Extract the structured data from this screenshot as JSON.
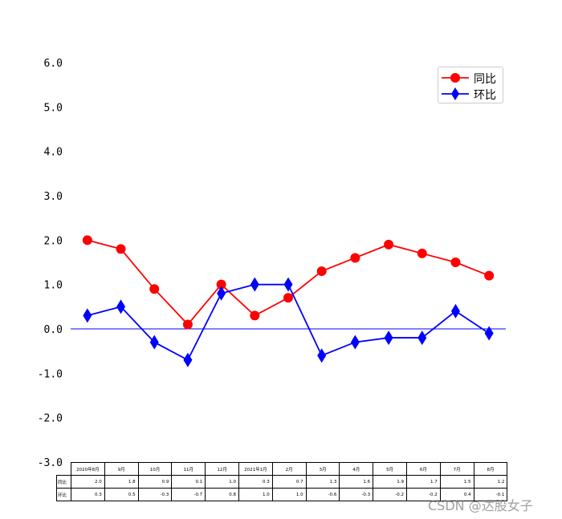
{
  "chart_data": {
    "type": "line",
    "categories": [
      "2020年8月",
      "9月",
      "10月",
      "11月",
      "12月",
      "2021年1月",
      "2月",
      "3月",
      "4月",
      "5月",
      "6月",
      "7月",
      "8月"
    ],
    "series": [
      {
        "name": "同比",
        "values": [
          2.0,
          1.8,
          0.9,
          0.1,
          1.0,
          0.3,
          0.7,
          1.3,
          1.6,
          1.9,
          1.7,
          1.5,
          1.2
        ],
        "color": "#ff0000",
        "marker": "circle"
      },
      {
        "name": "环比",
        "values": [
          0.3,
          0.5,
          -0.3,
          -0.7,
          0.8,
          1.0,
          1.0,
          -0.6,
          -0.3,
          -0.2,
          -0.2,
          0.4,
          -0.1
        ],
        "color": "#0000ff",
        "marker": "diamond"
      }
    ],
    "ylim": [
      -3.0,
      6.0
    ],
    "yticks": [
      "6.0",
      "5.0",
      "4.0",
      "3.0",
      "2.0",
      "1.0",
      "0.0",
      "-1.0",
      "-2.0",
      "-3.0"
    ],
    "baseline": 0.0,
    "baseline_color": "#0000ff",
    "legend_position": "top-right",
    "grid": false,
    "table": {
      "row_labels": [
        "同比",
        "环比"
      ],
      "rows": [
        [
          "2.0",
          "1.8",
          "0.9",
          "0.1",
          "1.0",
          "0.3",
          "0.7",
          "1.3",
          "1.6",
          "1.9",
          "1.7",
          "1.5",
          "1.2"
        ],
        [
          "0.3",
          "0.5",
          "-0.3",
          "-0.7",
          "0.8",
          "1.0",
          "1.0",
          "-0.6",
          "-0.3",
          "-0.2",
          "-0.2",
          "0.4",
          "-0.1"
        ]
      ]
    }
  },
  "watermark": "CSDN @达股女子"
}
